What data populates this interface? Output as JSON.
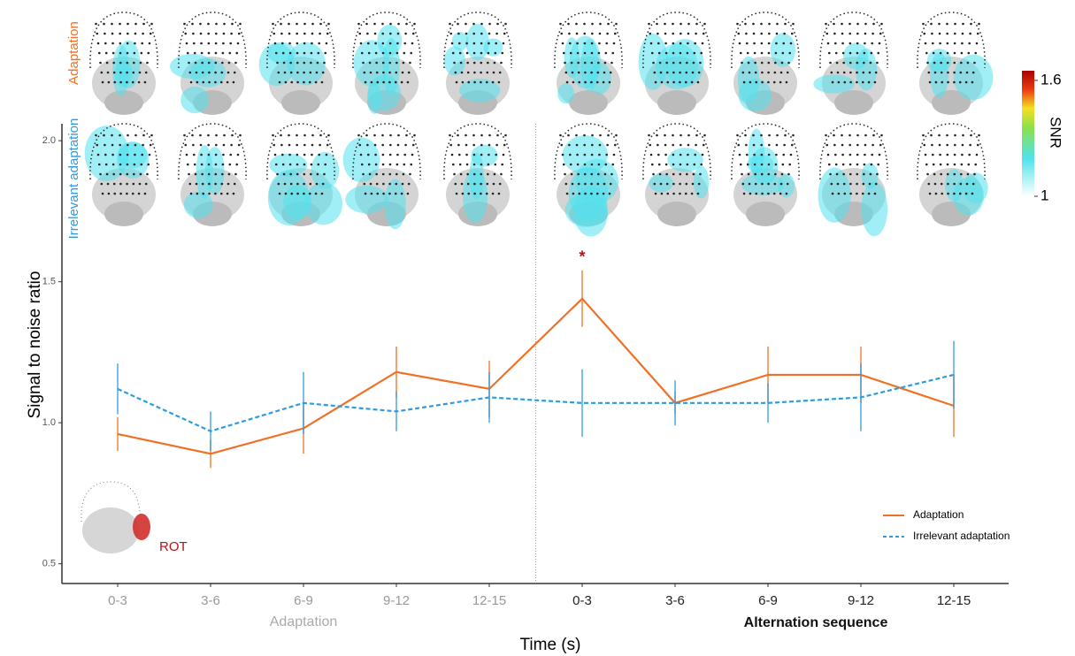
{
  "chart_data": {
    "type": "line",
    "x_label": "Time (s)",
    "y_label": "Signal to noise ratio",
    "categories": [
      "0-3",
      "3-6",
      "6-9",
      "9-12",
      "12-15",
      "0-3",
      "3-6",
      "6-9",
      "9-12",
      "12-15"
    ],
    "group_labels": [
      "Adaptation",
      "Alternation sequence"
    ],
    "series": [
      {
        "name": "Adaptation",
        "color": "#f07026",
        "dash": "solid",
        "values": [
          0.96,
          0.89,
          0.98,
          1.18,
          1.12,
          1.44,
          1.07,
          1.17,
          1.17,
          1.06
        ],
        "errors": [
          0.06,
          0.05,
          0.09,
          0.09,
          0.1,
          0.1,
          0.04,
          0.1,
          0.1,
          0.11
        ]
      },
      {
        "name": "Irrelevant adaptation",
        "color": "#2e9be0",
        "dash": "dashed",
        "values": [
          1.12,
          0.97,
          1.07,
          1.04,
          1.09,
          1.07,
          1.07,
          1.07,
          1.09,
          1.17
        ],
        "errors": [
          0.09,
          0.07,
          0.11,
          0.07,
          0.09,
          0.12,
          0.08,
          0.07,
          0.12,
          0.12
        ]
      }
    ],
    "ylim": [
      0.43,
      2.06
    ],
    "yticks": [
      {
        "value": 0.5,
        "label": "0.5"
      },
      {
        "value": 1.0,
        "label": "1.0"
      },
      {
        "value": 1.5,
        "label": "1.5"
      },
      {
        "value": 2.0,
        "label": "2.0"
      }
    ],
    "annotation": "*",
    "inset_label": "ROT",
    "legend": "bottom-right",
    "topomap": {
      "row_labels": [
        "Adaptation",
        "Irrelevant adaptation"
      ],
      "colorbar": {
        "label": "SNR",
        "lim": [
          1,
          1.65
        ],
        "ticks": [
          1,
          1.6
        ]
      }
    }
  }
}
